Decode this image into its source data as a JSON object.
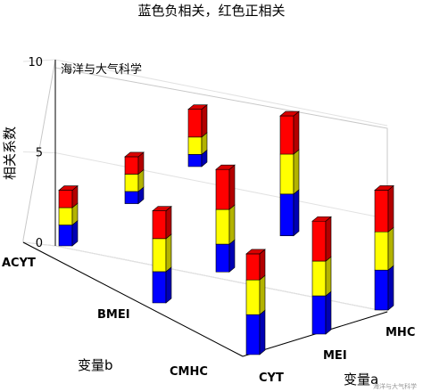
{
  "chart_data": {
    "type": "bar3d",
    "title": "蓝色负相关，红色正相关",
    "watermark": "海洋与大气科学",
    "footer_watermark": "海洋与大气科学",
    "ylabel": "相关系数",
    "xlabel": "变量a",
    "zlabel": "变量b",
    "zlim": [
      0,
      10
    ],
    "zticks": [
      0,
      5,
      10
    ],
    "variables_a": [
      "CYT",
      "MEI",
      "MHC"
    ],
    "variables_b": [
      "ACYT",
      "BMEI",
      "CMHC"
    ],
    "colors": {
      "negative": "#0000ff",
      "middle": "#ffff00",
      "positive": "#ff0000"
    },
    "bars": [
      {
        "a": "CYT",
        "b": "ACYT",
        "segments": [
          1.2,
          1.0,
          1.0
        ]
      },
      {
        "a": "MEI",
        "b": "ACYT",
        "segments": [
          0.7,
          1.0,
          1.0
        ]
      },
      {
        "a": "MHC",
        "b": "ACYT",
        "segments": [
          0.7,
          1.0,
          1.6
        ]
      },
      {
        "a": "CYT",
        "b": "BMEI",
        "segments": [
          1.8,
          1.9,
          1.6
        ]
      },
      {
        "a": "MEI",
        "b": "BMEI",
        "segments": [
          1.6,
          2.0,
          2.3
        ]
      },
      {
        "a": "MHC",
        "b": "BMEI",
        "segments": [
          2.4,
          2.3,
          2.2
        ]
      },
      {
        "a": "CYT",
        "b": "CMHC",
        "segments": [
          2.3,
          2.0,
          1.5
        ]
      },
      {
        "a": "MEI",
        "b": "CMHC",
        "segments": [
          2.2,
          2.0,
          2.3
        ]
      },
      {
        "a": "MHC",
        "b": "CMHC",
        "segments": [
          2.3,
          2.2,
          2.4
        ]
      }
    ]
  }
}
